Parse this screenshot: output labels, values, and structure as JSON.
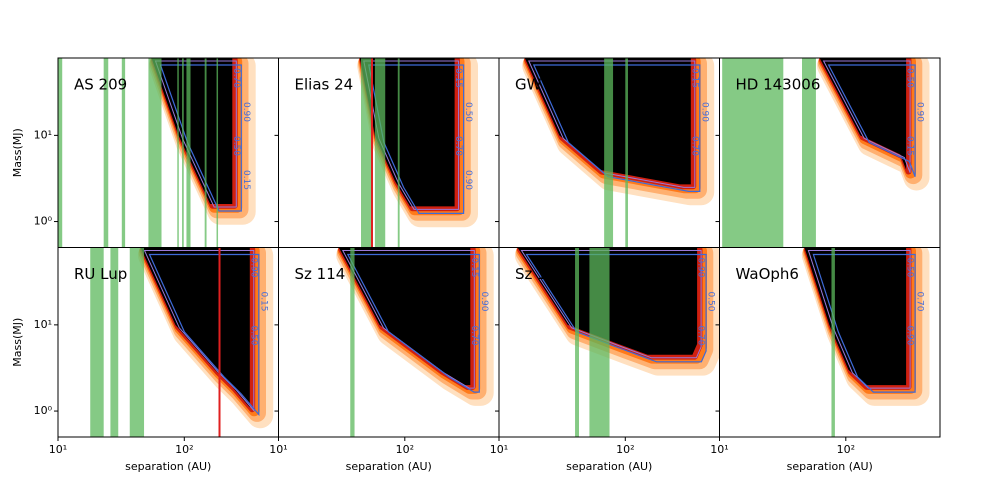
{
  "chart_data": [
    {
      "type": "region",
      "title": "AS 209",
      "ylabel": "Mass(MJ)",
      "xlim": [
        10,
        557
      ],
      "ylim": [
        0.5,
        79
      ],
      "log": true,
      "xticks": [
        {
          "value": 10,
          "label": "10¹"
        },
        {
          "value": 100,
          "label": "10²"
        }
      ],
      "yticks": [
        {
          "value": 1,
          "label": "10⁰"
        },
        {
          "value": 10,
          "label": "10¹"
        }
      ],
      "region": {
        "x": [
          55,
          90,
          120,
          160,
          240,
          240
        ],
        "y": [
          79,
          10,
          4,
          1.6,
          1.6,
          79
        ]
      },
      "bands": [
        [
          10,
          10.8
        ],
        [
          23,
          25
        ],
        [
          32,
          34
        ],
        [
          52,
          66
        ],
        [
          88,
          90
        ],
        [
          96,
          99
        ],
        [
          104,
          112
        ],
        [
          145,
          150
        ],
        [
          180,
          184
        ]
      ],
      "red": [],
      "band_color": "#5cb85c",
      "contour_labels": [
        "0.70",
        "0.90",
        "0.50",
        "0.15"
      ]
    },
    {
      "type": "region",
      "title": "Elias 24",
      "xlim": [
        10,
        557
      ],
      "ylim": [
        0.5,
        79
      ],
      "log": true,
      "xticks": [
        {
          "value": 10,
          "label": "10¹"
        },
        {
          "value": 100,
          "label": "10²"
        }
      ],
      "yticks": [
        {
          "value": 1,
          "label": "10⁰"
        },
        {
          "value": 10,
          "label": "10¹"
        }
      ],
      "region": {
        "x": [
          44,
          58,
          83,
          110,
          248,
          248
        ],
        "y": [
          79,
          10,
          3,
          1.5,
          1.5,
          79
        ]
      },
      "bands": [
        [
          45,
          54
        ],
        [
          58,
          70
        ],
        [
          88,
          91
        ]
      ],
      "red": [
        55
      ],
      "band_color": "#5cb85c",
      "contour_labels": [
        "0.15",
        "0.50",
        "0.70",
        "0.90"
      ]
    },
    {
      "type": "region",
      "title": "GW Lup",
      "xlim": [
        10,
        557
      ],
      "ylim": [
        0.5,
        79
      ],
      "log": true,
      "xticks": [
        {
          "value": 10,
          "label": "10¹"
        },
        {
          "value": 100,
          "label": "10²"
        }
      ],
      "yticks": [
        {
          "value": 1,
          "label": "10⁰"
        },
        {
          "value": 10,
          "label": "10¹"
        }
      ],
      "region": {
        "x": [
          16,
          30,
          62,
          270,
          330,
          330
        ],
        "y": [
          79,
          10,
          4,
          2.7,
          2.7,
          79
        ]
      },
      "bands": [
        [
          68,
          80
        ],
        [
          100,
          105
        ]
      ],
      "red": [],
      "band_color": "#5cb85c",
      "contour_labels": [
        "0.15",
        "0.90",
        "0.70"
      ]
    },
    {
      "type": "region",
      "title": "HD 143006",
      "xlim": [
        10,
        557
      ],
      "ylim": [
        0.5,
        79
      ],
      "log": true,
      "xticks": [
        {
          "value": 10,
          "label": "10¹"
        },
        {
          "value": 100,
          "label": "10²"
        }
      ],
      "yticks": [
        {
          "value": 1,
          "label": "10⁰"
        },
        {
          "value": 10,
          "label": "10¹"
        }
      ],
      "region": {
        "x": [
          62,
          130,
          270,
          300,
          300
        ],
        "y": [
          79,
          10,
          6,
          4,
          79
        ]
      },
      "bands": [
        [
          10.5,
          32
        ],
        [
          45,
          58
        ]
      ],
      "red": [],
      "band_color": "#5cb85c",
      "contour_labels": [
        "0.50",
        "0.90",
        "0.15"
      ]
    },
    {
      "type": "region",
      "title": "RU Lup",
      "ylabel": "Mass(MJ)",
      "xlabel": "separation (AU)",
      "xlim": [
        10,
        557
      ],
      "ylim": [
        0.5,
        79
      ],
      "log": true,
      "xticks": [
        {
          "value": 10,
          "label": "10¹"
        },
        {
          "value": 100,
          "label": "10²"
        }
      ],
      "yticks": [
        {
          "value": 1,
          "label": "10⁰"
        },
        {
          "value": 10,
          "label": "10¹"
        }
      ],
      "region": {
        "x": [
          45,
          85,
          175,
          240,
          330,
          330
        ],
        "y": [
          79,
          10,
          3,
          1.9,
          1.1,
          79
        ]
      },
      "bands": [
        [
          18,
          23
        ],
        [
          26,
          30
        ],
        [
          37,
          48
        ]
      ],
      "red": [
        190
      ],
      "band_color": "#5cb85c",
      "contour_labels": [
        "0.90",
        "0.15",
        "0.50"
      ]
    },
    {
      "type": "region",
      "title": "Sz 114",
      "xlabel": "separation (AU)",
      "xlim": [
        10,
        557
      ],
      "ylim": [
        0.5,
        79
      ],
      "log": true,
      "xticks": [
        {
          "value": 10,
          "label": "10¹"
        },
        {
          "value": 100,
          "label": "10²"
        }
      ],
      "yticks": [
        {
          "value": 1,
          "label": "10⁰"
        },
        {
          "value": 10,
          "label": "10¹"
        }
      ],
      "region": {
        "x": [
          30,
          63,
          190,
          300,
          330,
          330
        ],
        "y": [
          79,
          10,
          3,
          2,
          2,
          79
        ]
      },
      "bands": [
        [
          37,
          40
        ]
      ],
      "red": [],
      "band_color": "#5cb85c",
      "contour_labels": [
        "0.15",
        "0.90",
        "0.70"
      ]
    },
    {
      "type": "region",
      "title": "Sz 129",
      "xlabel": "separation (AU)",
      "xlim": [
        10,
        557
      ],
      "ylim": [
        0.5,
        79
      ],
      "log": true,
      "xticks": [
        {
          "value": 10,
          "label": "10¹"
        },
        {
          "value": 100,
          "label": "10²"
        }
      ],
      "yticks": [
        {
          "value": 1,
          "label": "10⁰"
        },
        {
          "value": 10,
          "label": "10¹"
        }
      ],
      "region": {
        "x": [
          14,
          35,
          88,
          150,
          340,
          370,
          370
        ],
        "y": [
          79,
          10,
          6,
          4.5,
          4.5,
          6,
          79
        ]
      },
      "bands": [
        [
          40,
          43
        ],
        [
          52,
          75
        ]
      ],
      "red": [],
      "band_color": "#5cb85c",
      "contour_labels": [
        "0.90",
        "0.50",
        "0.70"
      ]
    },
    {
      "type": "region",
      "title": "WaOph6",
      "xlabel": "separation (AU)",
      "xlim": [
        10,
        557
      ],
      "ylim": [
        0.5,
        79
      ],
      "log": true,
      "xticks": [
        {
          "value": 10,
          "label": "10¹"
        },
        {
          "value": 100,
          "label": "10²"
        }
      ],
      "yticks": [
        {
          "value": 1,
          "label": "10⁰"
        },
        {
          "value": 10,
          "label": "10¹"
        }
      ],
      "region": {
        "x": [
          47,
          74,
          105,
          140,
          300,
          300
        ],
        "y": [
          79,
          10,
          3,
          2,
          2,
          79
        ]
      },
      "bands": [
        [
          77,
          82
        ]
      ],
      "red": [],
      "band_color": "#5cb85c",
      "contour_labels": [
        "0.50",
        "0.70",
        "0.90"
      ]
    }
  ]
}
